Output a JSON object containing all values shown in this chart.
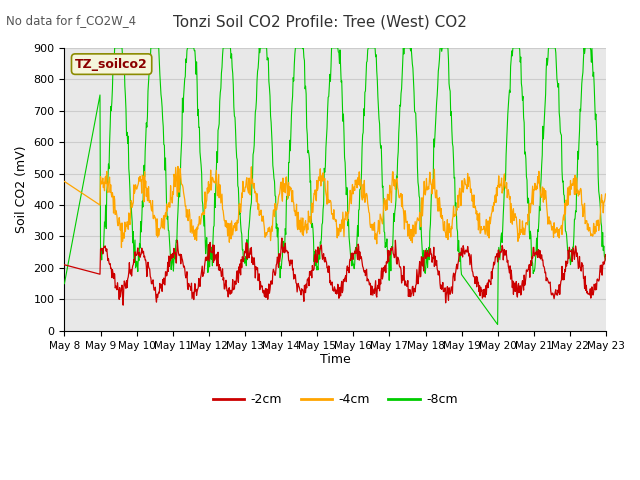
{
  "title": "Tonzi Soil CO2 Profile: Tree (West) CO2",
  "subtitle": "No data for f_CO2W_4",
  "ylabel": "Soil CO2 (mV)",
  "xlabel": "Time",
  "ylim": [
    0,
    900
  ],
  "yticks": [
    0,
    100,
    200,
    300,
    400,
    500,
    600,
    700,
    800,
    900
  ],
  "xtick_labels": [
    "May 8",
    "May 9",
    "May 10",
    "May 11",
    "May 12",
    "May 13",
    "May 14",
    "May 15",
    "May 16",
    "May 17",
    "May 18",
    "May 19",
    "May 20",
    "May 21",
    "May 22",
    "May 23"
  ],
  "legend_label_2cm": "-2cm",
  "legend_label_4cm": "-4cm",
  "legend_label_8cm": "-8cm",
  "color_2cm": "#cc0000",
  "color_4cm": "#ffa500",
  "color_8cm": "#00cc00",
  "annotation_label": "TZ_soilco2",
  "annotation_color": "#8b0000",
  "annotation_bg": "#f5f5dc",
  "bg_color": "#e8e8e8",
  "plot_bg": "#ffffff",
  "grid_color": "#cccccc",
  "n_points": 960,
  "days": 15,
  "seed": 42
}
